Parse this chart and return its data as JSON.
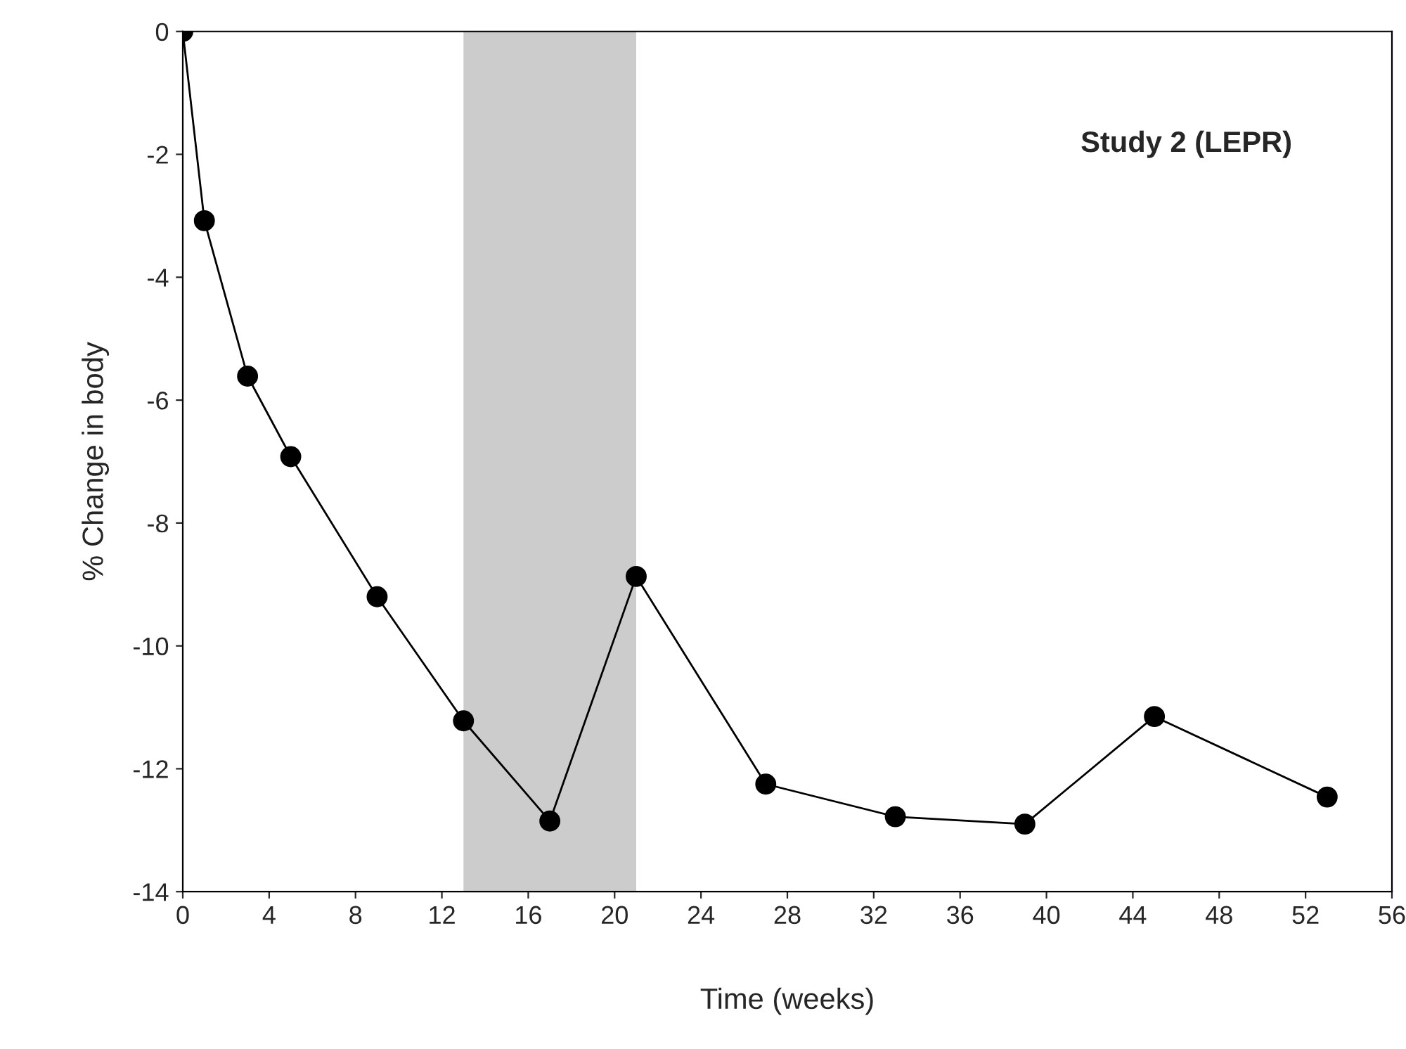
{
  "chart_data": {
    "type": "line",
    "xlabel": "Time (weeks)",
    "ylabel": "% Change in body",
    "x": [
      0,
      1,
      3,
      5,
      9,
      13,
      17,
      21,
      27,
      33,
      39,
      45,
      53
    ],
    "series": [
      {
        "color": "#000000",
        "values": [
          0,
          -3.08,
          -5.61,
          -6.92,
          -9.2,
          -11.22,
          -12.85,
          -8.87,
          -12.25,
          -12.78,
          -12.9,
          -11.15,
          -12.46
        ]
      }
    ],
    "marker": "circle",
    "line_style": "solid",
    "xlim": [
      0,
      56
    ],
    "xticks": [
      0,
      4,
      8,
      12,
      16,
      20,
      24,
      28,
      32,
      36,
      40,
      44,
      48,
      52,
      56
    ],
    "ylim": [
      -14,
      0
    ],
    "yticks": [
      -14,
      -12,
      -10,
      -8,
      -6,
      -4,
      -2,
      0
    ],
    "bands": [
      {
        "axis": "x",
        "from": 13,
        "to": 21,
        "color": "#cccccc"
      }
    ],
    "annotations": [
      "Study 2 (LEPR)"
    ],
    "grid": false,
    "legend": false
  }
}
